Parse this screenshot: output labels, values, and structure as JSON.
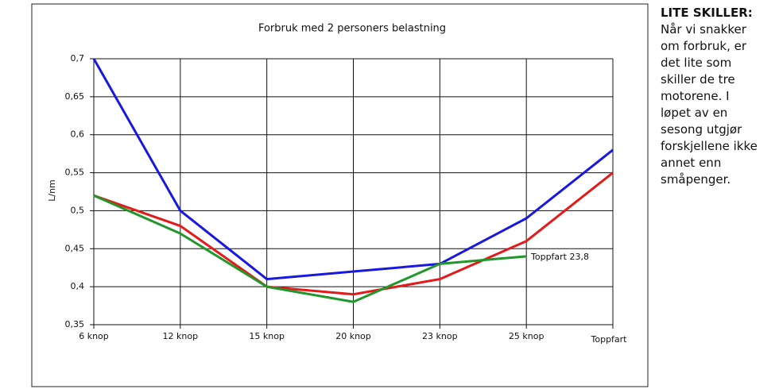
{
  "chart_data": {
    "type": "line",
    "title": "Forbruk med 2 personers belastning",
    "y_label": "L/nm",
    "categories": [
      "6 knop",
      "12 knop",
      "15 knop",
      "20 knop",
      "23 knop",
      "25 knop",
      "Toppfart"
    ],
    "series": [
      {
        "color": "#1818e0",
        "values": [
          0.7,
          0.5,
          0.41,
          0.42,
          0.43,
          0.49,
          0.58
        ]
      },
      {
        "color": "#e41a1a",
        "values": [
          0.52,
          0.48,
          0.4,
          0.39,
          0.41,
          0.46,
          0.55
        ]
      },
      {
        "color": "#21962a",
        "values": [
          0.52,
          0.47,
          0.4,
          0.38,
          0.43,
          0.44,
          null
        ]
      }
    ],
    "ylim": [
      0.35,
      0.7
    ],
    "yticks": [
      {
        "value": 0.35,
        "label": "0,35"
      },
      {
        "value": 0.4,
        "label": "0,4"
      },
      {
        "value": 0.45,
        "label": "0,45"
      },
      {
        "value": 0.5,
        "label": "0,5"
      },
      {
        "value": 0.55,
        "label": "0,55"
      },
      {
        "value": 0.6,
        "label": "0,6"
      },
      {
        "value": 0.65,
        "label": "0,65"
      },
      {
        "value": 0.7,
        "label": "0,7"
      }
    ],
    "grid": true,
    "annotation": "Toppfart 23,8"
  },
  "sidebar": {
    "heading": "LITE SKILLER:",
    "text": "Når vi snakker om forbruk, er det lite som skiller de tre motorene. I løpet av en sesong utgjør forskjellene ikke annet enn småpenger."
  }
}
